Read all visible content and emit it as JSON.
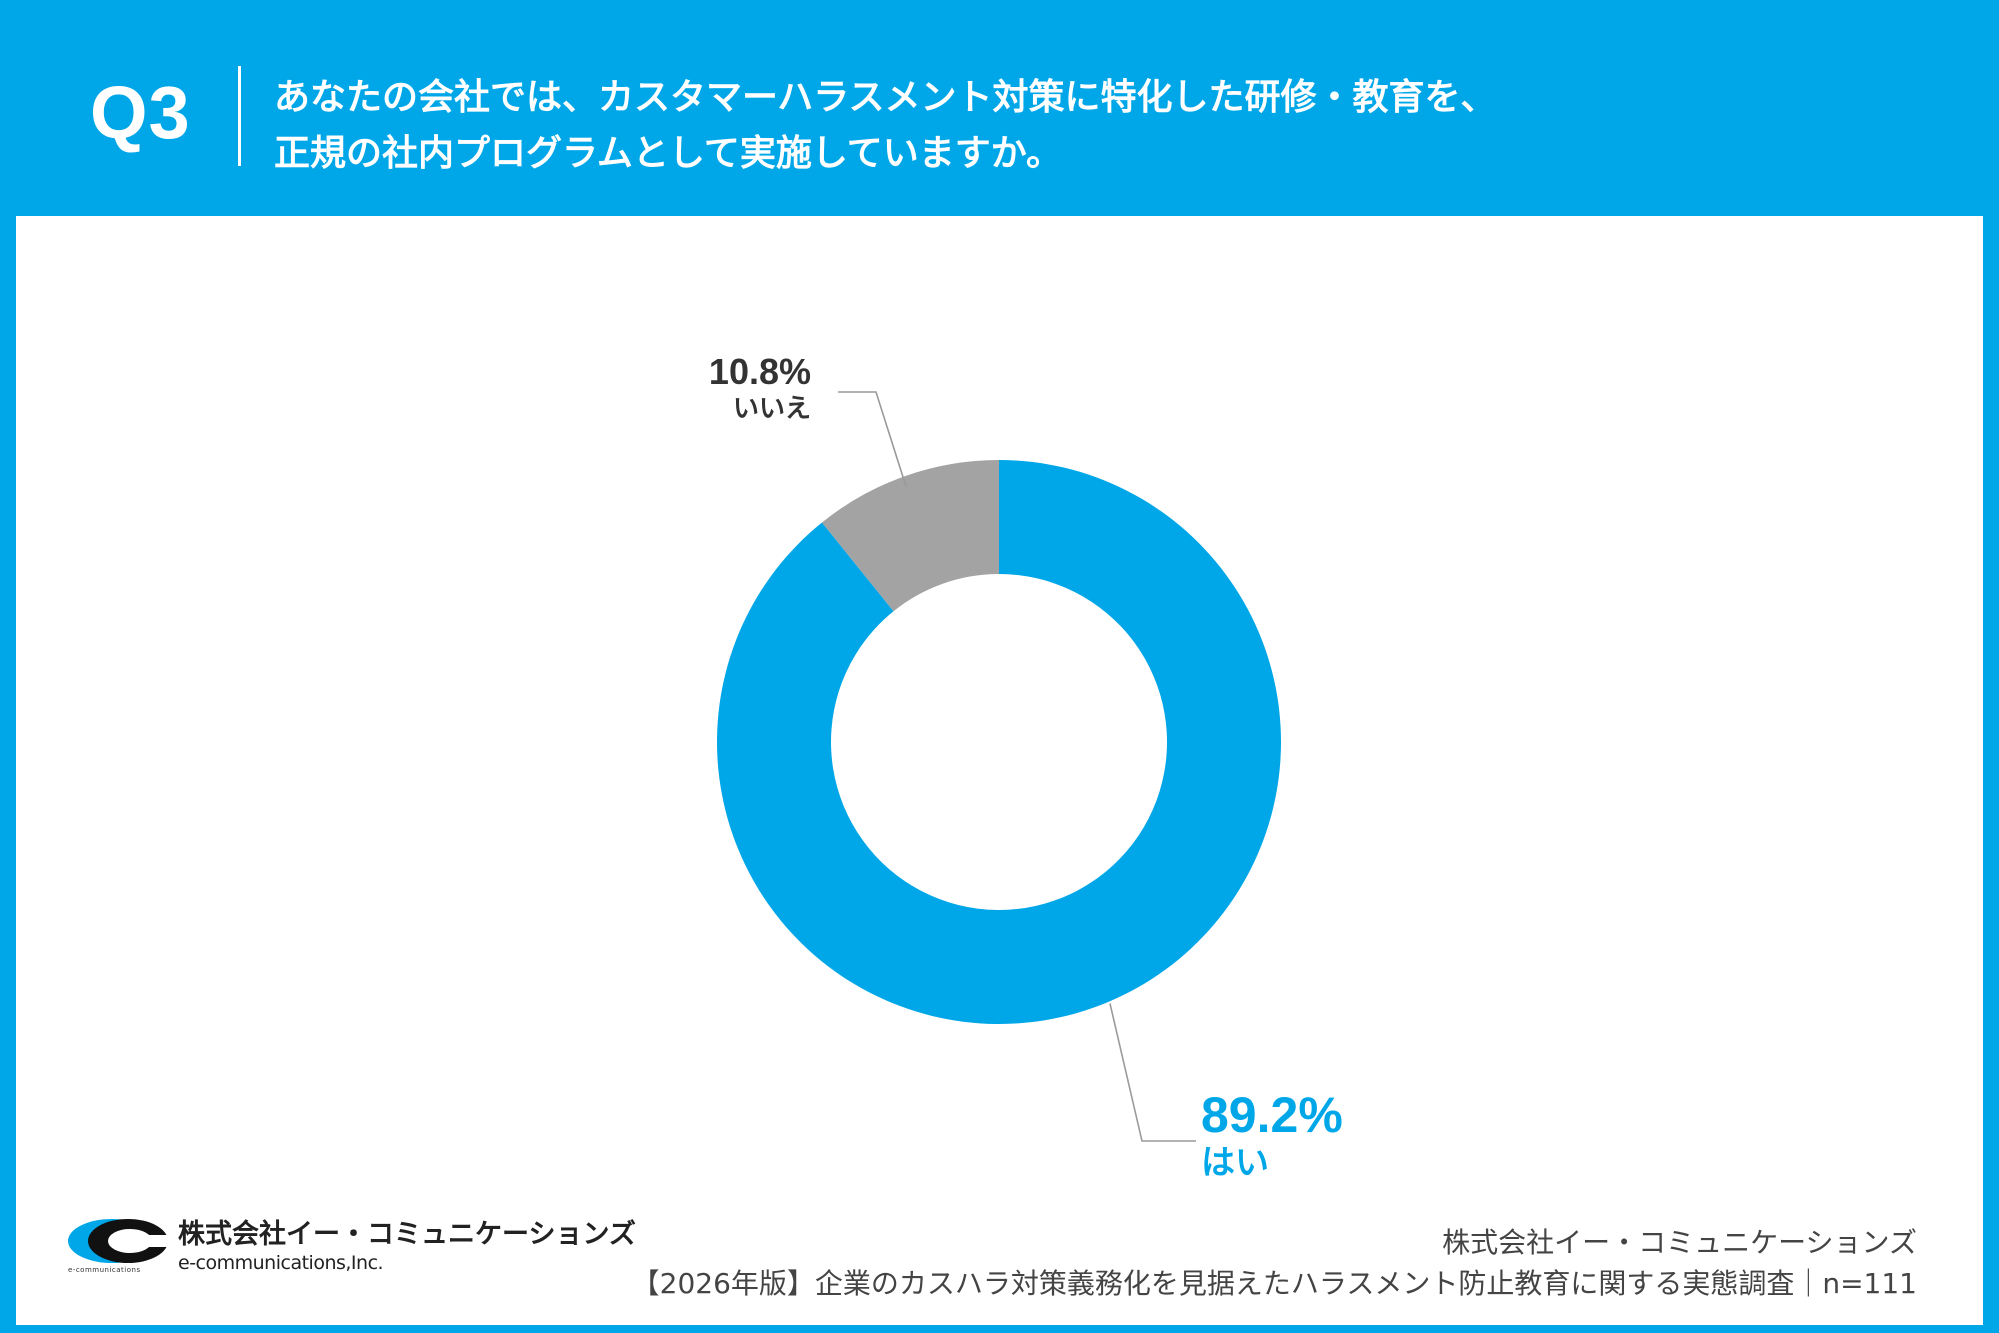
{
  "header": {
    "question_number": "Q3",
    "question_line1": "あなたの会社では、カスタマーハラスメント対策に特化した研修・教育を、",
    "question_line2": "正規の社内プログラムとして実施していますか。"
  },
  "chart_data": {
    "type": "pie",
    "style": "donut",
    "title": "あなたの会社では、カスタマーハラスメント対策に特化した研修・教育を、正規の社内プログラムとして実施していますか。",
    "categories": [
      "はい",
      "いいえ"
    ],
    "values": [
      89.2,
      10.8
    ],
    "value_labels": [
      "89.2%",
      "10.8%"
    ],
    "colors": [
      "#00a7e8",
      "#a3a3a3"
    ],
    "label_colors": [
      "#00a7e8",
      "#333333"
    ],
    "unit": "%"
  },
  "footer": {
    "company_ja": "株式会社イー・コミュニケーションズ",
    "company_en": "e-communications,Inc.",
    "logo_tiny": "e-communications",
    "credit_company": "株式会社イー・コミュニケーションズ",
    "survey_title": "【2026年版】企業のカスハラ対策義務化を見据えたハラスメント防止教育に関する実態調査｜n=111"
  },
  "colors": {
    "brand": "#00a7e8",
    "background": "#ffffff",
    "muted": "#a3a3a3"
  }
}
